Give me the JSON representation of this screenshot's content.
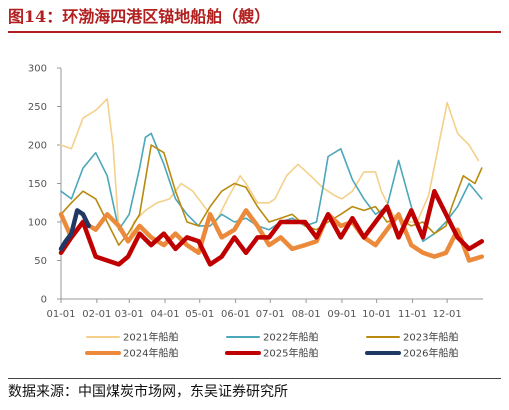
{
  "header": {
    "title": "图14：环渤海四港区锚地船舶（艘）"
  },
  "footer": {
    "source": "数据来源：中国煤炭市场网，东吴证券研究所"
  },
  "colors": {
    "2021": "#f4d08a",
    "2022": "#4ba7b9",
    "2023": "#b88a0e",
    "2024": "#ec8a3c",
    "2025": "#c00000",
    "2026": "#1f3864"
  },
  "chart_data": {
    "type": "line",
    "title": "",
    "xlabel": "",
    "ylabel": "",
    "ylim": [
      0,
      300
    ],
    "yticks": [
      0,
      50,
      100,
      150,
      200,
      250,
      300
    ],
    "x_ticks": [
      "01-01",
      "02-01",
      "03-01",
      "04-01",
      "05-01",
      "06-01",
      "07-01",
      "08-01",
      "09-01",
      "10-01",
      "11-01",
      "12-01"
    ],
    "grid": false,
    "legend_position": "bottom",
    "series": [
      {
        "name": "2021年船舶",
        "x": [
          "01-01",
          "01-10",
          "01-20",
          "01-31",
          "02-10",
          "02-15",
          "02-20",
          "03-01",
          "03-05",
          "03-15",
          "03-25",
          "04-05",
          "04-15",
          "04-25",
          "05-05",
          "05-15",
          "05-25",
          "06-05",
          "06-10",
          "06-20",
          "06-30",
          "07-05",
          "07-15",
          "07-25",
          "08-05",
          "08-15",
          "08-25",
          "09-01",
          "09-10",
          "09-20",
          "09-30",
          "10-05",
          "10-15",
          "10-25",
          "11-05",
          "11-15",
          "11-25",
          "12-01",
          "12-10",
          "12-20",
          "12-28"
        ],
        "y": [
          200,
          195,
          235,
          245,
          260,
          200,
          90,
          75,
          100,
          115,
          125,
          130,
          150,
          140,
          120,
          100,
          130,
          160,
          150,
          125,
          125,
          130,
          160,
          175,
          160,
          145,
          135,
          130,
          140,
          165,
          165,
          140,
          110,
          100,
          100,
          135,
          210,
          255,
          215,
          200,
          180
        ]
      },
      {
        "name": "2022年船舶",
        "x": [
          "01-01",
          "01-10",
          "01-20",
          "01-31",
          "02-10",
          "02-20",
          "03-01",
          "03-10",
          "03-15",
          "03-20",
          "03-31",
          "04-10",
          "04-20",
          "04-30",
          "05-10",
          "05-20",
          "05-31",
          "06-10",
          "06-20",
          "06-30",
          "07-10",
          "07-20",
          "07-31",
          "08-10",
          "08-15",
          "08-20",
          "08-31",
          "09-10",
          "09-20",
          "09-30",
          "10-10",
          "10-20",
          "10-31",
          "11-10",
          "11-20",
          "11-30",
          "12-10",
          "12-20",
          "12-31"
        ],
        "y": [
          140,
          130,
          170,
          190,
          160,
          90,
          110,
          170,
          210,
          215,
          175,
          130,
          110,
          95,
          95,
          110,
          100,
          105,
          95,
          90,
          100,
          105,
          95,
          100,
          140,
          185,
          195,
          155,
          130,
          110,
          120,
          180,
          120,
          75,
          85,
          100,
          120,
          150,
          130
        ]
      },
      {
        "name": "2023年船舶",
        "x": [
          "01-01",
          "01-10",
          "01-20",
          "01-31",
          "02-10",
          "02-20",
          "02-28",
          "03-10",
          "03-20",
          "03-31",
          "04-10",
          "04-20",
          "04-30",
          "05-10",
          "05-20",
          "05-31",
          "06-10",
          "06-20",
          "06-30",
          "07-10",
          "07-20",
          "07-31",
          "08-10",
          "08-20",
          "08-31",
          "09-10",
          "09-20",
          "09-30",
          "10-10",
          "10-20",
          "10-31",
          "11-10",
          "11-20",
          "11-30",
          "12-05",
          "12-15",
          "12-25",
          "12-31"
        ],
        "y": [
          110,
          125,
          140,
          130,
          100,
          70,
          85,
          110,
          200,
          190,
          140,
          100,
          95,
          120,
          140,
          150,
          145,
          120,
          100,
          105,
          110,
          95,
          90,
          100,
          110,
          120,
          115,
          120,
          100,
          105,
          95,
          100,
          85,
          95,
          120,
          160,
          150,
          170
        ]
      },
      {
        "name": "2024年船舶",
        "x": [
          "01-01",
          "01-10",
          "01-20",
          "01-31",
          "02-10",
          "02-20",
          "02-28",
          "03-10",
          "03-20",
          "03-31",
          "04-10",
          "04-20",
          "04-30",
          "05-10",
          "05-20",
          "05-31",
          "06-10",
          "06-20",
          "06-30",
          "07-10",
          "07-20",
          "07-31",
          "08-10",
          "08-20",
          "08-31",
          "09-10",
          "09-20",
          "09-30",
          "10-10",
          "10-20",
          "10-31",
          "11-10",
          "11-20",
          "11-30",
          "12-10",
          "12-20",
          "12-31"
        ],
        "y": [
          110,
          80,
          100,
          90,
          110,
          95,
          75,
          95,
          80,
          70,
          85,
          70,
          60,
          110,
          80,
          90,
          115,
          95,
          70,
          80,
          65,
          70,
          75,
          110,
          95,
          100,
          80,
          70,
          90,
          110,
          70,
          60,
          55,
          60,
          90,
          50,
          55
        ]
      },
      {
        "name": "2025年船舶",
        "x": [
          "01-01",
          "01-10",
          "01-20",
          "01-31",
          "02-10",
          "02-20",
          "02-28",
          "03-10",
          "03-20",
          "03-31",
          "04-10",
          "04-20",
          "04-30",
          "05-10",
          "05-20",
          "05-31",
          "06-10",
          "06-20",
          "06-30",
          "07-10",
          "07-20",
          "07-31",
          "08-10",
          "08-20",
          "08-31",
          "09-10",
          "09-20",
          "09-30",
          "10-10",
          "10-20",
          "10-31",
          "11-10",
          "11-20",
          "11-30",
          "12-10",
          "12-20",
          "12-31"
        ],
        "y": [
          60,
          80,
          100,
          55,
          50,
          45,
          55,
          85,
          70,
          85,
          65,
          80,
          75,
          45,
          55,
          80,
          60,
          80,
          80,
          100,
          100,
          100,
          80,
          110,
          80,
          105,
          80,
          100,
          120,
          80,
          115,
          80,
          140,
          110,
          80,
          65,
          75
        ]
      },
      {
        "name": "2026年船舶",
        "x": [
          "01-01",
          "01-05",
          "01-10",
          "01-15",
          "01-20",
          "01-25"
        ],
        "y": [
          65,
          75,
          85,
          115,
          110,
          95
        ]
      }
    ]
  }
}
